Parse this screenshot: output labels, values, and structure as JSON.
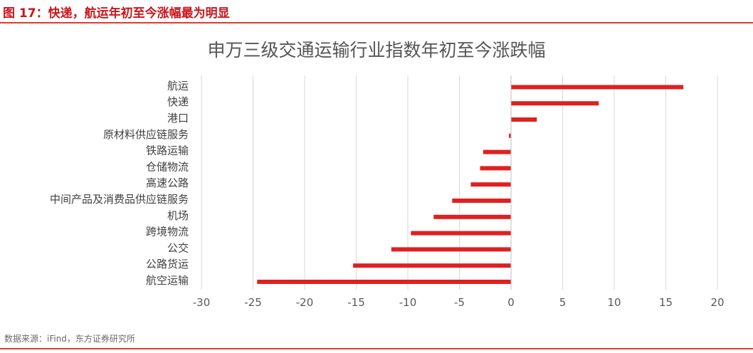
{
  "header": {
    "title": "图 17：快递，航运年初至今涨幅最为明显",
    "accent_color": "#c8161d",
    "rule_color": "#e03a2f"
  },
  "footer": {
    "source": "数据来源：iFind，东方证券研究所"
  },
  "chart_data": {
    "type": "bar",
    "orientation": "horizontal",
    "title": "申万三级交通运输行业指数年初至今涨跌幅",
    "categories": [
      "航运",
      "快递",
      "港口",
      "原材料供应链服务",
      "铁路运输",
      "仓储物流",
      "高速公路",
      "中间产品及消费品供应链服务",
      "机场",
      "跨境物流",
      "公交",
      "公路货运",
      "航空运输"
    ],
    "values": [
      16.7,
      8.5,
      2.5,
      -0.2,
      -2.7,
      -3.0,
      -3.9,
      -5.7,
      -7.5,
      -9.7,
      -11.6,
      -15.3,
      -24.6
    ],
    "xlim": [
      -30,
      20
    ],
    "xticks": [
      -30,
      -25,
      -20,
      -15,
      -10,
      -5,
      0,
      5,
      10,
      15,
      20
    ],
    "grid": true,
    "bar_color": "#e02020",
    "legend": false
  }
}
